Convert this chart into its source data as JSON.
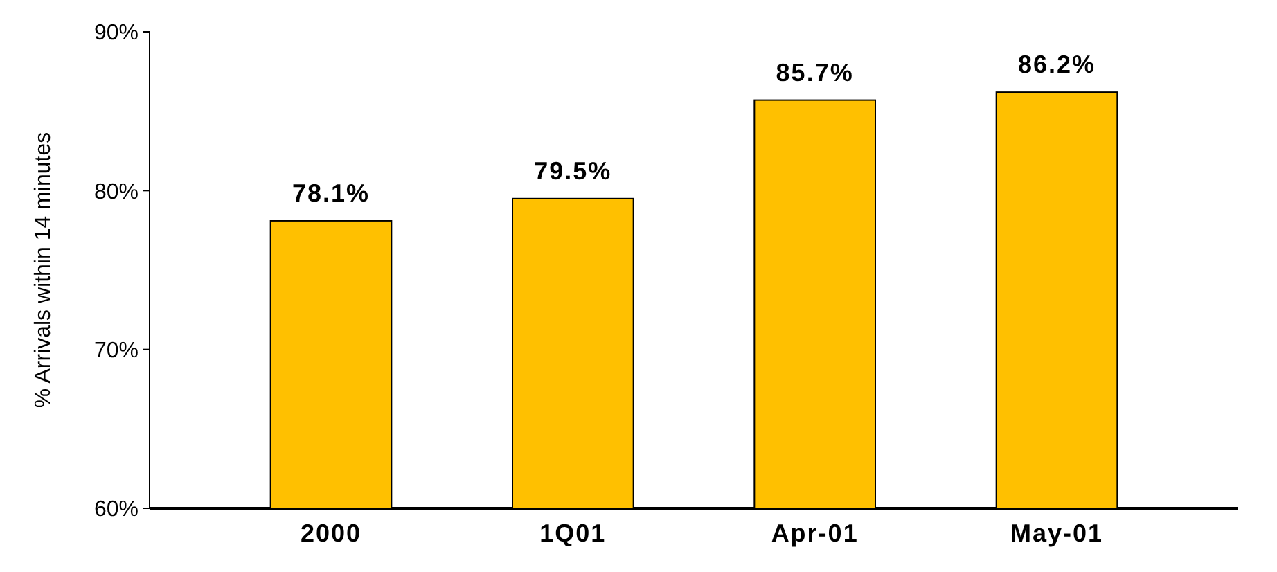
{
  "chart_data": {
    "type": "bar",
    "ylabel": "% Arrivals within 14 minutes",
    "categories": [
      "2000",
      "1Q01",
      "Apr-01",
      "May-01"
    ],
    "values": [
      78.1,
      79.5,
      85.7,
      86.2
    ],
    "value_labels": [
      "78.1%",
      "79.5%",
      "85.7%",
      "86.2%"
    ],
    "color": "#ffc000",
    "ylim": [
      60,
      90
    ],
    "yticks": [
      {
        "value": 60,
        "label": "60%"
      },
      {
        "value": 70,
        "label": "70%"
      },
      {
        "value": 80,
        "label": "80%"
      },
      {
        "value": 90,
        "label": "90%"
      }
    ],
    "grid": false
  }
}
